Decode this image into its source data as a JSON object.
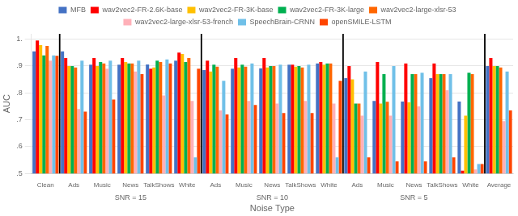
{
  "chart_data": {
    "type": "bar",
    "categories": [
      "Clean",
      "Ads",
      "Music",
      "News",
      "TalkShows",
      "White",
      "Ads",
      "Music",
      "News",
      "TalkShows",
      "White",
      "Ads",
      "Music",
      "News",
      "TalkShows",
      "White",
      "Average"
    ],
    "series": [
      {
        "name": "MFB",
        "color": "#4472C4",
        "values": [
          0.955,
          0.955,
          0.905,
          0.905,
          0.906,
          0.92,
          0.885,
          0.89,
          0.892,
          0.905,
          0.91,
          0.855,
          0.77,
          0.768,
          0.855,
          0.768,
          0.9
        ]
      },
      {
        "name": "wav2vec2-FR-2.6K-base",
        "color": "#FF0000",
        "values": [
          0.995,
          0.93,
          0.93,
          0.93,
          0.89,
          0.95,
          0.92,
          0.93,
          0.93,
          0.905,
          0.915,
          0.9,
          0.915,
          0.91,
          0.91,
          0.51,
          0.93
        ]
      },
      {
        "name": "wav2vec2-FR-3K-base",
        "color": "#FFC000",
        "values": [
          0.978,
          0.9,
          0.9,
          0.915,
          0.895,
          0.945,
          0.88,
          0.895,
          0.895,
          0.898,
          0.905,
          0.85,
          0.76,
          0.765,
          0.87,
          0.715,
          0.9
        ]
      },
      {
        "name": "wav2vec2-FR-3K-large",
        "color": "#00B050",
        "values": [
          0.94,
          0.9,
          0.915,
          0.91,
          0.92,
          0.915,
          0.905,
          0.905,
          0.9,
          0.9,
          0.91,
          0.76,
          0.87,
          0.87,
          0.87,
          0.875,
          0.9
        ]
      },
      {
        "name": "wav2vec2-large-xlsr-53",
        "color": "#FF6600",
        "values": [
          0.975,
          0.895,
          0.91,
          0.91,
          0.915,
          0.93,
          0.898,
          0.898,
          0.9,
          0.895,
          0.91,
          0.76,
          0.767,
          0.87,
          0.87,
          0.87,
          0.895
        ]
      },
      {
        "name": "wav2vec2-large-xlsr-53-french",
        "color": "#FFB0B8",
        "values": [
          0.92,
          0.74,
          0.89,
          0.88,
          0.79,
          0.77,
          0.735,
          0.77,
          0.76,
          0.77,
          0.76,
          0.715,
          0.715,
          0.75,
          0.81,
          0.515,
          0.695
        ]
      },
      {
        "name": "SpeechBrain-CRNN",
        "color": "#70C0E8",
        "values": [
          0.94,
          0.92,
          0.92,
          0.92,
          0.925,
          0.56,
          0.845,
          0.91,
          0.905,
          0.905,
          0.56,
          0.88,
          0.9,
          0.875,
          0.87,
          0.535,
          0.88
        ]
      },
      {
        "name": "openSMILE-LSTM",
        "color": "#FF4500",
        "values": [
          0.938,
          0.73,
          0.775,
          0.87,
          0.91,
          0.89,
          0.72,
          0.755,
          0.725,
          0.725,
          0.845,
          0.56,
          0.545,
          0.545,
          0.56,
          0.535,
          0.735
        ]
      }
    ],
    "xlabel": "Noise Type",
    "ylabel": "AUC",
    "ylim": [
      0.5,
      1.02
    ],
    "yticks": [
      {
        "value": 0.5,
        "label": ".5"
      },
      {
        "value": 0.6,
        "label": ".6"
      },
      {
        "value": 0.7,
        "label": ".7"
      },
      {
        "value": 0.8,
        "label": ".8"
      },
      {
        "value": 0.9,
        "label": ".9"
      },
      {
        "value": 1.0,
        "label": "1."
      }
    ],
    "grid": true,
    "legend": "top",
    "annotations": [
      "SNR = 15",
      "SNR = 10",
      "SNR = 5"
    ]
  }
}
